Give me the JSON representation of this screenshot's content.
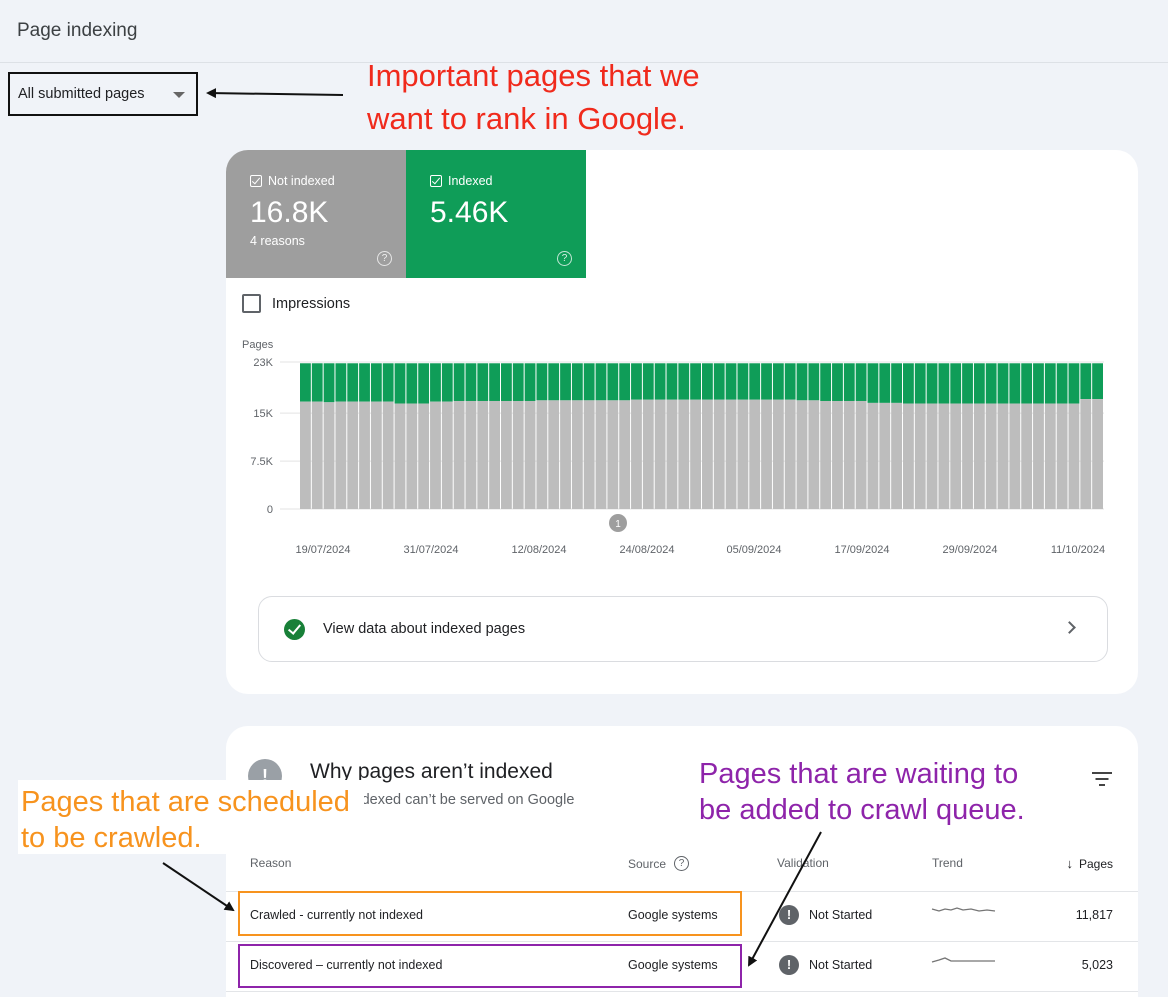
{
  "header": {
    "title": "Page indexing"
  },
  "filter": {
    "selected": "All submitted pages"
  },
  "annotations": {
    "top": [
      "Important pages that we",
      "want to rank in Google."
    ],
    "left": [
      "Pages that are scheduled",
      "to be crawled."
    ],
    "right": [
      "Pages that are waiting to",
      "be added to crawl queue."
    ]
  },
  "tiles": [
    {
      "label": "Not indexed",
      "value": "16.8K",
      "sub": "4 reasons",
      "color": "#9e9e9e"
    },
    {
      "label": "Indexed",
      "value": "5.46K",
      "sub": "",
      "color": "#0f9d58"
    }
  ],
  "impressions_label": "Impressions",
  "chart_data": {
    "type": "bar",
    "stacked": true,
    "ylabel": "Pages",
    "ylim": [
      0,
      23000
    ],
    "yticks": [
      "23K",
      "15K",
      "7.5K",
      "0"
    ],
    "yticks_values": [
      23000,
      15000,
      7500,
      0
    ],
    "xticks": [
      "19/07/2024",
      "31/07/2024",
      "12/08/2024",
      "24/08/2024",
      "05/09/2024",
      "17/09/2024",
      "29/09/2024",
      "11/10/2024"
    ],
    "annotation_marker": "1",
    "series": [
      {
        "name": "Not indexed",
        "color": "#bdbdbd",
        "values": [
          16800,
          16800,
          16700,
          16800,
          16800,
          16800,
          16800,
          16800,
          16500,
          16500,
          16500,
          16800,
          16800,
          16900,
          16900,
          16900,
          16900,
          16900,
          16900,
          16900,
          17000,
          17000,
          17000,
          17000,
          17000,
          17000,
          17000,
          17000,
          17100,
          17100,
          17100,
          17100,
          17100,
          17100,
          17100,
          17100,
          17100,
          17100,
          17100,
          17100,
          17100,
          17100,
          17000,
          17000,
          16900,
          16900,
          16900,
          16900,
          16600,
          16600,
          16600,
          16500,
          16500,
          16500,
          16500,
          16500,
          16500,
          16500,
          16500,
          16500,
          16500,
          16500,
          16500,
          16500,
          16500,
          16500,
          17200,
          17200
        ]
      },
      {
        "name": "Indexed",
        "color": "#0f9d58"
      }
    ],
    "totals": [
      22800,
      22800,
      22800,
      22800,
      22800,
      22800,
      22800,
      22800,
      22800,
      22800,
      22800,
      22800,
      22800,
      22800,
      22800,
      22800,
      22800,
      22800,
      22800,
      22800,
      22800,
      22800,
      22800,
      22800,
      22800,
      22800,
      22800,
      22800,
      22800,
      22800,
      22800,
      22800,
      22800,
      22800,
      22800,
      22800,
      22800,
      22800,
      22800,
      22800,
      22800,
      22800,
      22800,
      22800,
      22800,
      22800,
      22800,
      22800,
      22800,
      22800,
      22800,
      22800,
      22800,
      22800,
      22800,
      22800,
      22800,
      22800,
      22800,
      22800,
      22800,
      22800,
      22800,
      22800,
      22800,
      22800,
      22800,
      22800
    ]
  },
  "view_data_label": "View data about indexed pages",
  "why": {
    "title": "Why pages aren’t indexed",
    "subtitle": "aren’t indexed can’t be served on Google"
  },
  "table": {
    "headers": {
      "reason": "Reason",
      "source": "Source",
      "validation": "Validation",
      "trend": "Trend",
      "pages": "Pages"
    },
    "rows": [
      {
        "reason": "Crawled - currently not indexed",
        "source": "Google systems",
        "validation": "Not Started",
        "pages": "11,817"
      },
      {
        "reason": "Discovered – currently not indexed",
        "source": "Google systems",
        "validation": "Not Started",
        "pages": "5,023"
      }
    ]
  }
}
